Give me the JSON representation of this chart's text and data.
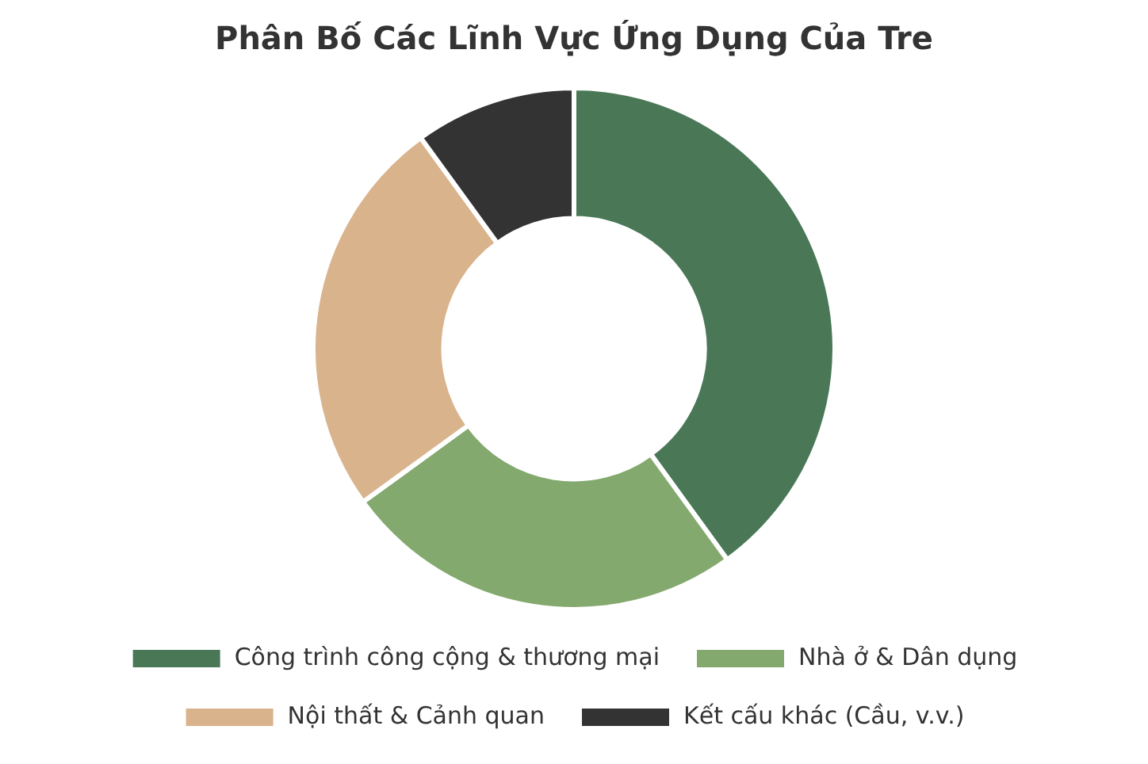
{
  "chart_data": {
    "type": "donut",
    "title": "Phân Bố Các Lĩnh Vực Ứng Dụng Của Tre",
    "categories": [
      "Công trình công cộng & thương mại",
      "Nhà ở & Dân dụng",
      "Nội thất & Cảnh quan",
      "Kết cấu khác (Cầu, v.v.)"
    ],
    "values": [
      40,
      25,
      25,
      10
    ],
    "colors": [
      "#4a7856",
      "#84a96e",
      "#d9b38c",
      "#333333"
    ],
    "legend": "bottom"
  }
}
